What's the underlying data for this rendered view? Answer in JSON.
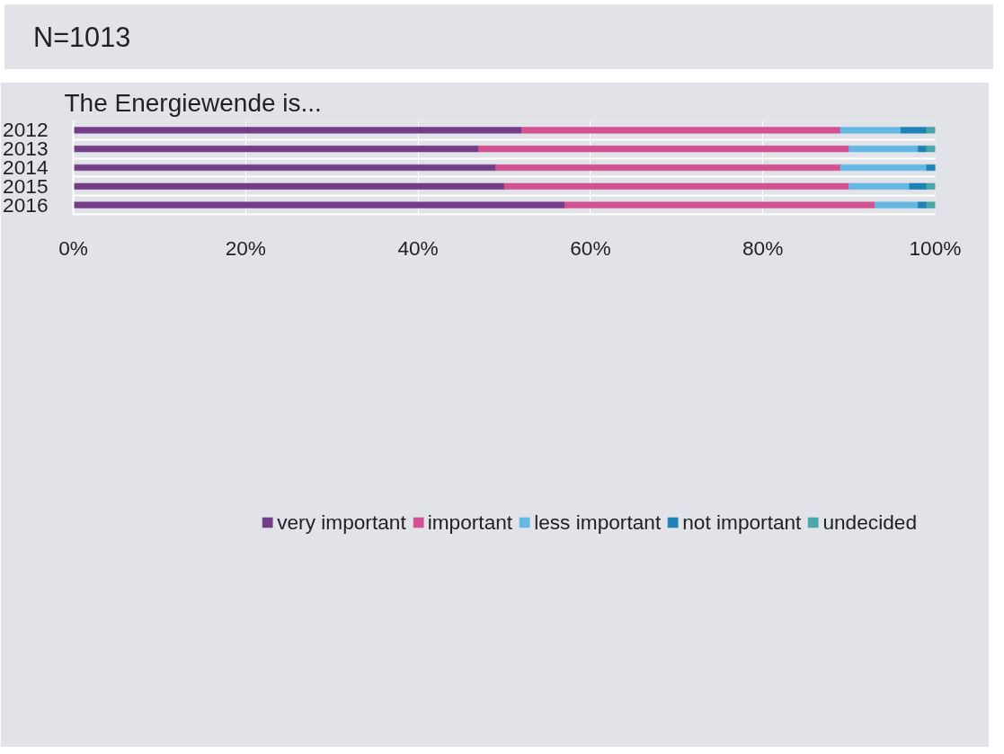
{
  "chart_data": {
    "type": "bar",
    "orientation": "horizontal",
    "stacked": true,
    "title": "The Energiewende is...",
    "annotations": [
      "N=1013"
    ],
    "categories": [
      "2012",
      "2013",
      "2014",
      "2015",
      "2016"
    ],
    "series": [
      {
        "name": "very important",
        "color": "#733d88",
        "values": [
          52,
          47,
          49,
          50,
          57
        ]
      },
      {
        "name": "important",
        "color": "#d15191",
        "values": [
          37,
          43,
          40,
          40,
          36
        ]
      },
      {
        "name": "less important",
        "color": "#64b8e4",
        "values": [
          7,
          8,
          10,
          7,
          5
        ]
      },
      {
        "name": "not important",
        "color": "#1f82b6",
        "values": [
          3,
          1,
          1,
          2,
          1
        ]
      },
      {
        "name": "undecided",
        "color": "#4aa6a8",
        "values": [
          1,
          1,
          0,
          1,
          1
        ]
      }
    ],
    "xlim": [
      0,
      100
    ],
    "xticks": [
      {
        "value": 0,
        "label": "0%"
      },
      {
        "value": 20,
        "label": "20%"
      },
      {
        "value": 40,
        "label": "40%"
      },
      {
        "value": 60,
        "label": "60%"
      },
      {
        "value": 80,
        "label": "80%"
      },
      {
        "value": 100,
        "label": "100%"
      }
    ],
    "grid": true,
    "legend": "bottom"
  }
}
